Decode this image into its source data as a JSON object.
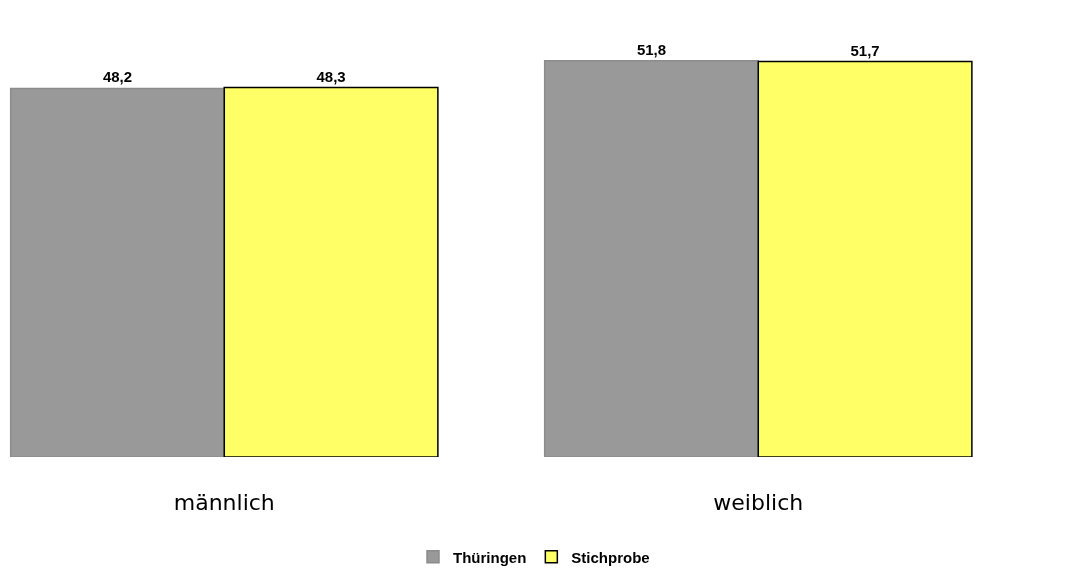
{
  "chart_data": {
    "type": "bar",
    "categories": [
      "männlich",
      "weiblich"
    ],
    "series": [
      {
        "name": "Thüringen",
        "color": "#999999",
        "values": [
          48.2,
          51.8
        ],
        "value_labels": [
          "48,2",
          "51,8"
        ]
      },
      {
        "name": "Stichprobe",
        "color": "#ffff66",
        "values": [
          48.3,
          51.7
        ],
        "value_labels": [
          "48,3",
          "51,7"
        ]
      }
    ],
    "legend": "bottom"
  }
}
